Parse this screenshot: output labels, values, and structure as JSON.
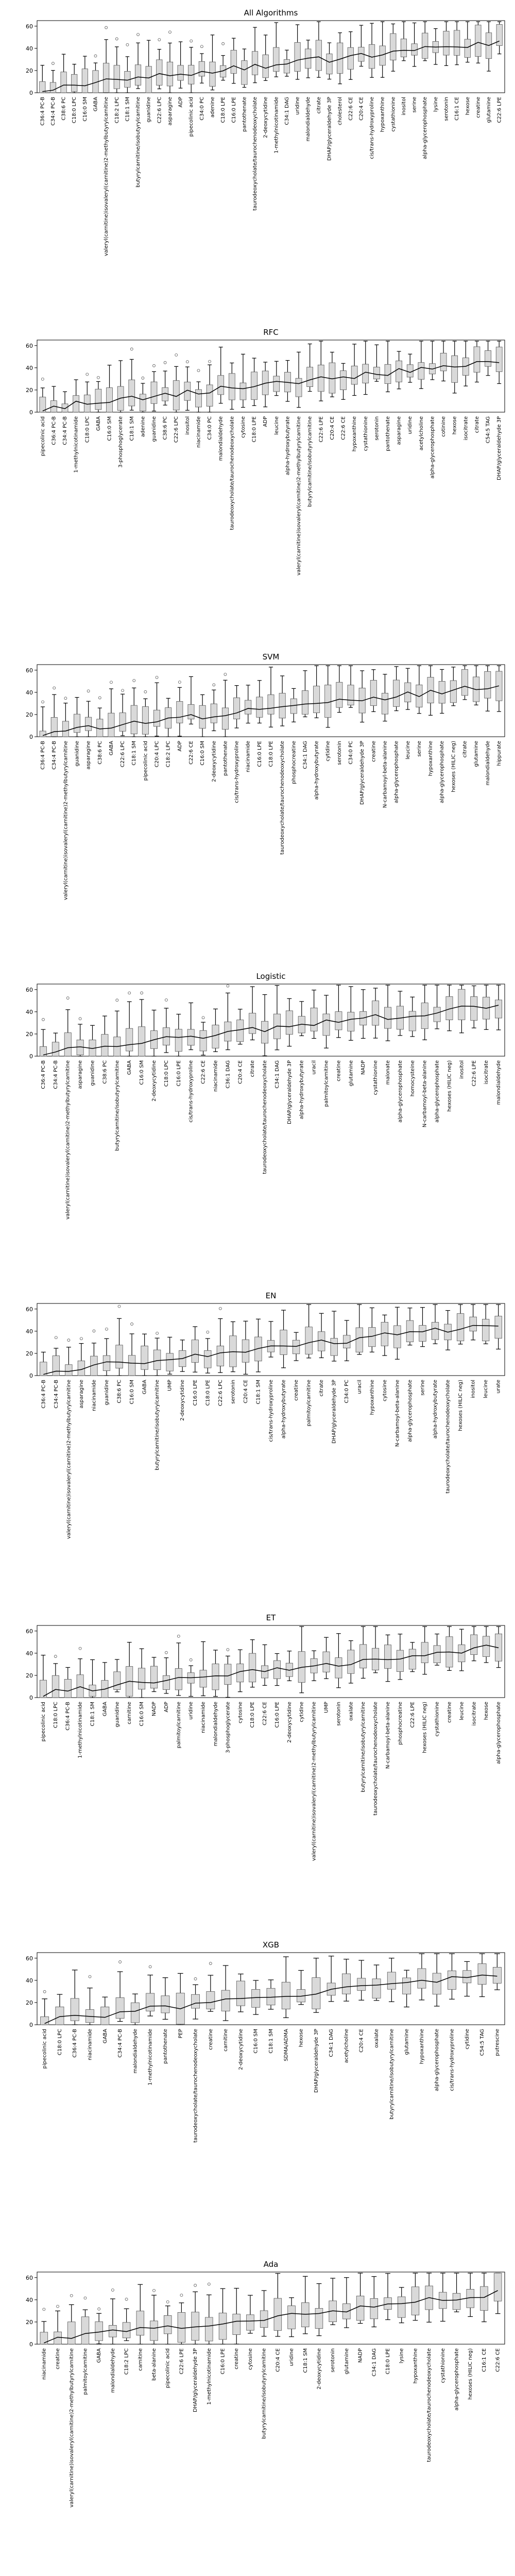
{
  "chart_data": [
    {
      "type": "box",
      "title": "All Algorithms",
      "ylim": [
        0,
        65
      ],
      "yticks": [
        0,
        20,
        40,
        60
      ],
      "categories": [
        "C36:4 PC-B",
        "C34:4 PC-B",
        "C38:6 PC",
        "C18:0 LPC",
        "C16:0 SM",
        "GABA",
        "valeryl(carnitine)isovaleryl(carnitine)2-methylbutyrylcarnitine",
        "C18:2 LPC",
        "C18:1 SM",
        "butyrylcarnitine/isobutyrylcarnitine",
        "guanidine",
        "C22:6 LPC",
        "asparagine",
        "ADP",
        "pipecolinic acid",
        "C34:0 PC",
        "adenine",
        "C18:0 LPE",
        "C16:0 LPE",
        "pantothenate",
        "taurodeoxycholate/taurochenodeoxycholate",
        "2-deoxycytidine",
        "1-methylnicotinamide",
        "C34:1 DAG",
        "uridine",
        "malondialdehyde",
        "citrate",
        "DHAP/glyceraldehyde 3P",
        "cholesterol",
        "C22:6 CE",
        "C20:4 CE",
        "cis/trans-hydroxyproline",
        "hypoxanthine",
        "cystathionine",
        "inositol",
        "serine",
        "alpha-glycerophosphate",
        "lysine",
        "serotonin",
        "C16:1 CE",
        "hexose",
        "creatine",
        "glutamine",
        "C22:6 LPE"
      ]
    },
    {
      "type": "box",
      "title": "RFC",
      "ylim": [
        0,
        65
      ],
      "yticks": [
        0,
        20,
        40,
        60
      ],
      "categories": [
        "pipecolinic acid",
        "C36:4 PC-B",
        "C34:4 PC-B",
        "1-methylnicotinamide",
        "C18:0 LPC",
        "GABA",
        "C16:0 SM",
        "3-phosphoglycerate",
        "C18:1 SM",
        "adenine",
        "guanidine",
        "C38:6 PC",
        "C22:6 LPC",
        "inositol",
        "niacinamide",
        "C34:0 PC",
        "malondialdehyde",
        "taurodeoxycholate/taurochenodeoxycholate",
        "cytosine",
        "C18:0 LPE",
        "ADP",
        "leucine",
        "alpha-hydroxybutyrate",
        "valeryl(carnitine)isovaleryl(carnitine)2-methylbutyrylcarnitine",
        "butyrylcarnitine/isobutyrylcarnitine",
        "C22:6 LPE",
        "C20:4 CE",
        "C22:6 CE",
        "hypoxanthine",
        "cystathionine",
        "serotonin",
        "pantothenate",
        "asparagine",
        "uridine",
        "acetylcholine",
        "alpha-glycerophosphate",
        "cotinine",
        "hexose",
        "isocitrate",
        "citrate",
        "C54:5 TAG",
        "DHAP/glyceraldehyde 3P"
      ]
    },
    {
      "type": "box",
      "title": "SVM",
      "ylim": [
        0,
        65
      ],
      "yticks": [
        0,
        20,
        40,
        60
      ],
      "categories": [
        "C36:4 PC-B",
        "C34:4 PC-B",
        "valeryl(carnitine)isovaleryl(carnitine)2-methylbutyrylcarnitine",
        "guanidine",
        "asparagine",
        "C38:6 PC",
        "GABA",
        "C22:6 LPC",
        "C18:1 SM",
        "pipecolinic acid",
        "C20:4 LPC",
        "C18:2 LPC",
        "ADP",
        "C22:6 CE",
        "C16:0 SM",
        "2-deoxycytidine",
        "pantothenate",
        "cis/trans-hydroxyproline",
        "niacinamide",
        "C16:0 LPE",
        "C18:0 LPE",
        "taurodeoxycholate/taurochenodeoxycholate",
        "phosphocreatine",
        "C34:1 DAG",
        "alpha-hydroxybutyrate",
        "cytidine",
        "serotonin",
        "C34:0 PC",
        "DHAP/glyceraldehyde 3P",
        "creatine",
        "N-carbamoyl-beta-alanine",
        "alpha-glycerophosphate",
        "leucine",
        "serine",
        "hypoxanthine",
        "alpha-glycerophosphate",
        "hexoses (HILIC neg)",
        "citrate",
        "glutamine",
        "malondialdehyde",
        "hippurate"
      ]
    },
    {
      "type": "box",
      "title": "Logistic",
      "ylim": [
        0,
        65
      ],
      "yticks": [
        0,
        20,
        40,
        60
      ],
      "categories": [
        "C36:4 PC-B",
        "C34:4 PC-B",
        "valeryl(carnitine)isovaleryl(carnitine)2-methylbutyrylcarnitine",
        "asparagine",
        "guanidine",
        "C38:6 PC",
        "butyrylcarnitine/isobutyrylcarnitine",
        "GABA",
        "C16:0 SM",
        "2-deoxycytidine",
        "C18:0 LPC",
        "C16:0 LPE",
        "cis/trans-hydroxyproline",
        "C22:6 CE",
        "niacinamide",
        "C36:1 DAG",
        "C20:4 CE",
        "citrate",
        "taurodeoxycholate/taurochenodeoxycholate",
        "C34:1 DAG",
        "DHAP/glyceraldehyde 3P",
        "alpha-hydroxybutyrate",
        "uracil",
        "palmitoylcarnitine",
        "creatine",
        "glutamine",
        "NADP",
        "cystathionine",
        "malonate",
        "alpha-glycerophosphate",
        "homocysteine",
        "N-carbamoyl-beta-alanine",
        "alpha-glycerophosphate",
        "hexoses (HILIC neg)",
        "inositol",
        "C22:6 LPE",
        "isocitrate",
        "malondialdehyde"
      ]
    },
    {
      "type": "box",
      "title": "EN",
      "ylim": [
        0,
        65
      ],
      "yticks": [
        0,
        20,
        40,
        60
      ],
      "categories": [
        "C36:4 PC-B",
        "C34:4 PC-B",
        "valeryl(carnitine)isovaleryl(carnitine)2-methylbutyrylcarnitine",
        "asparagine",
        "niacinamide",
        "guanidine",
        "C38:6 PC",
        "C16:0 SM",
        "GABA",
        "butyrylcarnitine/isobutyrylcarnitine",
        "UMP",
        "2-deoxycytidine",
        "C16:0 LPE",
        "C18:0 LPE",
        "C22:6 LPC",
        "serotonin",
        "C20:4 CE",
        "C18:1 SM",
        "cis/trans-hydroxyproline",
        "alpha-hydroxybutyrate",
        "creatine",
        "palmitoylcarnitine",
        "citrate",
        "DHAP/glyceraldehyde 3P",
        "C34:0 PC",
        "uracil",
        "hypoxanthine",
        "cytosine",
        "N-carbamoyl-beta-alanine",
        "alpha-glycerophosphate",
        "serine",
        "alpha-hydroxybutyrate",
        "taurodeoxycholate/taurochenodeoxycholate",
        "hexoses (HILIC neg)",
        "inositol",
        "leucine",
        "urate"
      ]
    },
    {
      "type": "box",
      "title": "ET",
      "ylim": [
        0,
        65
      ],
      "yticks": [
        0,
        20,
        40,
        60
      ],
      "categories": [
        "pipecolinic acid",
        "C18:0 LPC",
        "C36:4 PC-B",
        "1-methylnicotinamide",
        "C18:1 SM",
        "GABA",
        "guanidine",
        "carnitine",
        "C16:0 SM",
        "NADP",
        "ADP",
        "palmitoylcarnitine",
        "uridine",
        "niacinamide",
        "malondialdehyde",
        "3-phosphoglycerate",
        "cytosine",
        "C18:0 LPE",
        "C22:6 CE",
        "C16:0 LPE",
        "2-deoxycytidine",
        "cytidine",
        "valeryl(carnitine)isovaleryl(carnitine)2-methylbutyrylcarnitine",
        "UMP",
        "serotonin",
        "oxalate",
        "butyrylcarnitine/isobutyrylcarnitine",
        "taurodeoxycholate/taurochenodeoxycholate",
        "N-carbamoyl-beta-alanine",
        "phosphocreatine",
        "C22:6 LPE",
        "hexoses (HILIC neg)",
        "cystathionine",
        "creatine",
        "leucine",
        "isocitrate",
        "hexose",
        "alpha-glycerophosphate"
      ]
    },
    {
      "type": "box",
      "title": "XGB",
      "ylim": [
        0,
        65
      ],
      "yticks": [
        0,
        20,
        40,
        60
      ],
      "categories": [
        "pipecolinic acid",
        "C18:0 LPC",
        "C36:4 PC-B",
        "niacinamide",
        "GABA",
        "C34:4 PC-B",
        "malondialdehyde",
        "1-methylnicotinamide",
        "pantothenate",
        "PEP",
        "taurodeoxycholate/taurochenodeoxycholate",
        "creatine",
        "carnitine",
        "2-deoxycytidine",
        "C16:0 SM",
        "C18:1 SM",
        "SDMA/ADMA",
        "hexose",
        "DHAP/glyceraldehyde 3P",
        "C34:1 DAG",
        "acetylcholine",
        "C20:4 CE",
        "oxalate",
        "butyrylcarnitine/isobutyrylcarnitine",
        "glutamine",
        "hypoxanthine",
        "alpha-glycerophosphate",
        "cis/trans-hydroxyproline",
        "cytidine",
        "C54:5 TAG",
        "putrescine"
      ]
    },
    {
      "type": "box",
      "title": "Ada",
      "ylim": [
        0,
        65
      ],
      "yticks": [
        0,
        20,
        40,
        60
      ],
      "categories": [
        "niacinamide",
        "creatine",
        "valeryl(carnitine)isovaleryl(carnitine)2-methylbutyrylcarnitine",
        "palmitoylcarnitine",
        "GABA",
        "malondialdehyde",
        "C18:2 LPC",
        "carnitine",
        "beta-alanine",
        "pipecolinic acid",
        "C22:6 LPE",
        "DHAP/glyceraldehyde 3P",
        "1-methylnicotinamide",
        "C16:0 LPE",
        "creatine",
        "cytosine",
        "butyrylcarnitine/isobutyrylcarnitine",
        "C20:4 CE",
        "uridine",
        "C18:1 SM",
        "2-deoxycytidine",
        "serotonin",
        "glutamine",
        "NADP",
        "C34:1 DAG",
        "C18:0 LPE",
        "lysine",
        "hypoxanthine",
        "taurodeoxycholate/taurochenodeoxycholate",
        "cystathionine",
        "alpha-glycerophosphate",
        "hexoses (HILIC neg)",
        "C16:1 CE",
        "C22:6 CE"
      ]
    }
  ]
}
